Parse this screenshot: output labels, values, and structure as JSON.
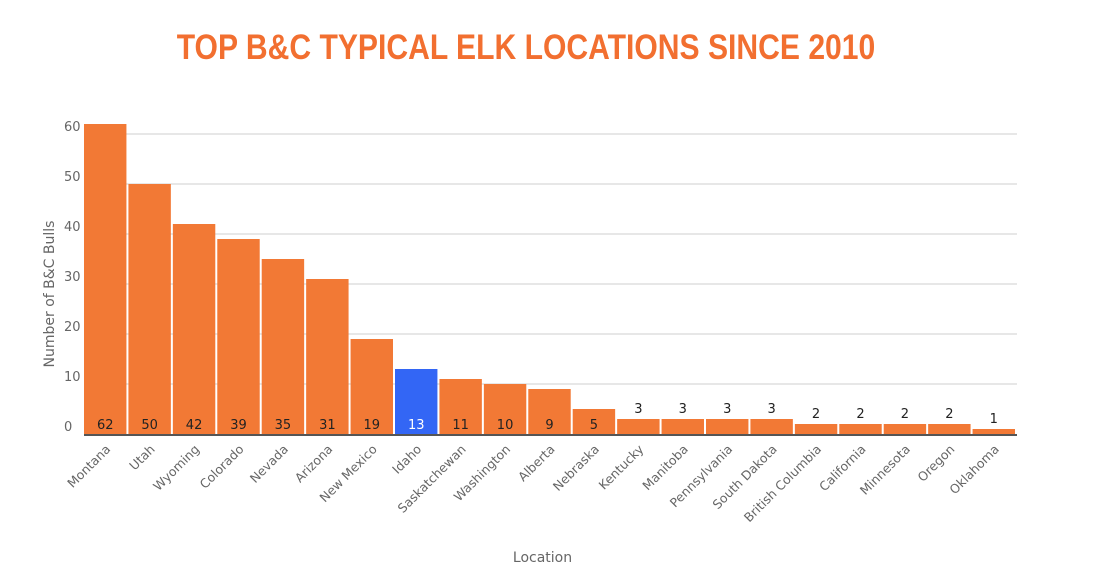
{
  "chart_data": {
    "type": "bar",
    "title": "TOP B&C TYPICAL ELK LOCATIONS SINCE 2010",
    "xlabel": "Location",
    "ylabel": "Number of B&C Bulls",
    "ylim": [
      0,
      60
    ],
    "yticks": [
      "0",
      "10",
      "20",
      "30",
      "40",
      "50",
      "60"
    ],
    "grid": true,
    "categories": [
      "Montana",
      "Utah",
      "Wyoming",
      "Colorado",
      "Nevada",
      "Arizona",
      "New Mexico",
      "Idaho",
      "Saskatchewan",
      "Washington",
      "Alberta",
      "Nebraska",
      "Kentucky",
      "Manitoba",
      "Pennsylvania",
      "South Dakota",
      "British Columbia",
      "California",
      "Minnesota",
      "Oregon",
      "Oklahoma"
    ],
    "values": [
      62,
      50,
      42,
      39,
      35,
      31,
      19,
      13,
      11,
      10,
      9,
      5,
      3,
      3,
      3,
      3,
      2,
      2,
      2,
      2,
      1
    ],
    "highlight": "Idaho",
    "colors": {
      "bar": "#f27935",
      "highlight": "#3366f5",
      "title": "#f26f30"
    }
  }
}
